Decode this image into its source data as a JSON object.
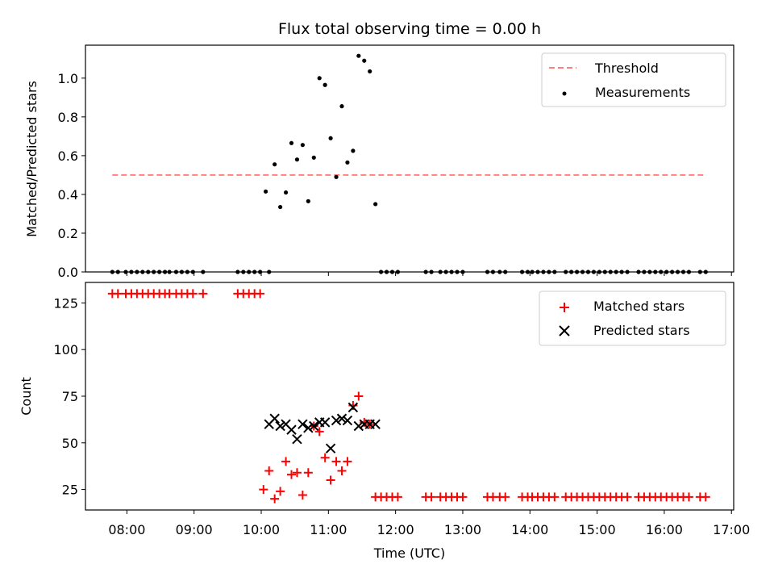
{
  "chart_data": {
    "type": "scatter",
    "title": "Flux total observing time = 0.00 h",
    "xlabel": "Time (UTC)",
    "x_ticks": [
      "08:00",
      "09:00",
      "10:00",
      "11:00",
      "12:00",
      "13:00",
      "14:00",
      "15:00",
      "16:00",
      "17:00"
    ],
    "xlim": [
      "07:23",
      "17:02"
    ],
    "colors": {
      "threshold": "#ff7f7f",
      "measurements": "#000000",
      "matched": "#ff0000",
      "predicted": "#000000"
    },
    "panels": [
      {
        "ylabel": "Matched/Predicted stars",
        "ylim": [
          0,
          1.17
        ],
        "y_ticks": [
          "0.0",
          "0.2",
          "0.4",
          "0.6",
          "0.8",
          "1.0"
        ],
        "legend_position": "upper right",
        "series": [
          {
            "name": "Threshold",
            "style": "dashed-line",
            "x": [
              "07:47",
              "16:35"
            ],
            "y": [
              0.5,
              0.5
            ]
          },
          {
            "name": "Measurements",
            "style": "dot",
            "x": [
              "07:47",
              "07:52",
              "07:59",
              "08:04",
              "08:09",
              "08:14",
              "08:19",
              "08:24",
              "08:29",
              "08:34",
              "08:38",
              "08:44",
              "08:49",
              "08:54",
              "08:59",
              "09:08",
              "09:39",
              "09:44",
              "09:49",
              "09:54",
              "09:59",
              "10:04",
              "10:07",
              "10:12",
              "10:17",
              "10:22",
              "10:27",
              "10:32",
              "10:37",
              "10:42",
              "10:47",
              "10:52",
              "10:57",
              "11:02",
              "11:07",
              "11:12",
              "11:17",
              "11:22",
              "11:27",
              "11:32",
              "11:37",
              "11:42",
              "11:47",
              "11:52",
              "11:57",
              "12:02",
              "12:27",
              "12:32",
              "12:40",
              "12:45",
              "12:50",
              "12:55",
              "13:00",
              "13:22",
              "13:27",
              "13:33",
              "13:38",
              "13:53",
              "13:58",
              "14:02",
              "14:07",
              "14:12",
              "14:17",
              "14:22",
              "14:32",
              "14:37",
              "14:42",
              "14:47",
              "14:52",
              "14:57",
              "15:02",
              "15:07",
              "15:12",
              "15:17",
              "15:22",
              "15:27",
              "15:37",
              "15:42",
              "15:47",
              "15:52",
              "15:57",
              "16:02",
              "16:07",
              "16:12",
              "16:17",
              "16:22",
              "16:32",
              "16:37"
            ],
            "y": [
              0,
              0,
              0,
              0,
              0,
              0,
              0,
              0,
              0,
              0,
              0,
              0,
              0,
              0,
              0,
              0,
              0,
              0,
              0,
              0,
              0,
              0.415,
              0,
              0.555,
              0.335,
              0.41,
              0.665,
              0.58,
              0.655,
              0.365,
              0.59,
              1.0,
              0.965,
              0.69,
              0.49,
              0.855,
              0.565,
              0.625,
              1.115,
              1.09,
              1.035,
              0.35,
              0,
              0,
              0,
              0,
              0,
              0,
              0,
              0,
              0,
              0,
              0,
              0,
              0,
              0,
              0,
              0,
              0,
              0,
              0,
              0,
              0,
              0,
              0,
              0,
              0,
              0,
              0,
              0,
              0,
              0,
              0,
              0,
              0,
              0,
              0,
              0,
              0,
              0,
              0,
              0,
              0,
              0,
              0,
              0,
              0,
              0
            ]
          }
        ]
      },
      {
        "ylabel": "Count",
        "ylim": [
          14,
          136
        ],
        "y_ticks": [
          "25",
          "50",
          "75",
          "100",
          "125"
        ],
        "legend_position": "upper right",
        "series": [
          {
            "name": "Matched stars",
            "style": "plus",
            "x": [
              "07:47",
              "07:52",
              "07:59",
              "08:04",
              "08:09",
              "08:14",
              "08:19",
              "08:24",
              "08:29",
              "08:34",
              "08:38",
              "08:44",
              "08:49",
              "08:54",
              "08:59",
              "09:08",
              "09:39",
              "09:44",
              "09:49",
              "09:54",
              "09:59",
              "10:02",
              "10:07",
              "10:12",
              "10:17",
              "10:22",
              "10:27",
              "10:32",
              "10:37",
              "10:42",
              "10:47",
              "10:52",
              "10:57",
              "11:02",
              "11:07",
              "11:12",
              "11:17",
              "11:22",
              "11:27",
              "11:32",
              "11:37",
              "11:42",
              "11:47",
              "11:52",
              "11:57",
              "12:02",
              "12:27",
              "12:32",
              "12:40",
              "12:45",
              "12:50",
              "12:55",
              "13:00",
              "13:22",
              "13:27",
              "13:33",
              "13:38",
              "13:53",
              "13:58",
              "14:02",
              "14:07",
              "14:12",
              "14:17",
              "14:22",
              "14:32",
              "14:37",
              "14:42",
              "14:47",
              "14:52",
              "14:57",
              "15:02",
              "15:07",
              "15:12",
              "15:17",
              "15:22",
              "15:27",
              "15:37",
              "15:42",
              "15:47",
              "15:52",
              "15:57",
              "16:02",
              "16:07",
              "16:12",
              "16:17",
              "16:22",
              "16:32",
              "16:37"
            ],
            "y": [
              130,
              130,
              130,
              130,
              130,
              130,
              130,
              130,
              130,
              130,
              130,
              130,
              130,
              130,
              130,
              130,
              130,
              130,
              130,
              130,
              130,
              25,
              35,
              20,
              24,
              40,
              33,
              34,
              22,
              34,
              59,
              56,
              42,
              30,
              40,
              35,
              40,
              70,
              75,
              61,
              60,
              21,
              21,
              21,
              21,
              21,
              21,
              21,
              21,
              21,
              21,
              21,
              21,
              21,
              21,
              21,
              21,
              21,
              21,
              21,
              21,
              21,
              21,
              21,
              21,
              21,
              21,
              21,
              21,
              21,
              21,
              21,
              21,
              21,
              21,
              21,
              21,
              21,
              21,
              21,
              21,
              21,
              21,
              21,
              21,
              21,
              21,
              21
            ]
          },
          {
            "name": "Predicted stars",
            "style": "x",
            "x": [
              "10:07",
              "10:12",
              "10:17",
              "10:22",
              "10:27",
              "10:32",
              "10:37",
              "10:42",
              "10:47",
              "10:52",
              "10:57",
              "11:02",
              "11:07",
              "11:12",
              "11:17",
              "11:22",
              "11:27",
              "11:32",
              "11:37",
              "11:42"
            ],
            "y": [
              60,
              63,
              59,
              60,
              57,
              52,
              60,
              58,
              59,
              61,
              61,
              47,
              62,
              63,
              62,
              69,
              59,
              60,
              60,
              60
            ]
          }
        ]
      }
    ]
  }
}
